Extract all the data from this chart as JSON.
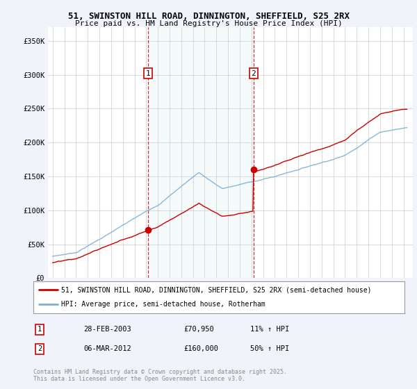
{
  "title1": "51, SWINSTON HILL ROAD, DINNINGTON, SHEFFIELD, S25 2RX",
  "title2": "Price paid vs. HM Land Registry's House Price Index (HPI)",
  "ylim": [
    0,
    370000
  ],
  "sale1_date": "28-FEB-2003",
  "sale1_price": 70950,
  "sale1_hpi_text": "11% ↑ HPI",
  "sale1_year": 2003.15,
  "sale2_date": "06-MAR-2012",
  "sale2_price": 160000,
  "sale2_hpi_text": "50% ↑ HPI",
  "sale2_year": 2012.19,
  "red_line_color": "#cc0000",
  "blue_line_color": "#7bafd4",
  "bg_color": "#f0f4fa",
  "plot_bg": "#ffffff",
  "grid_color": "#cccccc",
  "legend_label1": "51, SWINSTON HILL ROAD, DINNINGTON, SHEFFIELD, S25 2RX (semi-detached house)",
  "legend_label2": "HPI: Average price, semi-detached house, Rotherham",
  "footer": "Contains HM Land Registry data © Crown copyright and database right 2025.\nThis data is licensed under the Open Government Licence v3.0."
}
